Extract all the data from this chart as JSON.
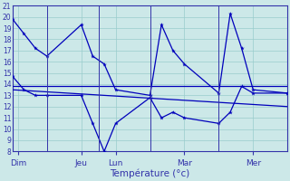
{
  "xlabel": "Température (°c)",
  "bg_color": "#cce8e8",
  "line_color": "#0000bb",
  "grid_color": "#99cccc",
  "axis_label_color": "#3333aa",
  "tick_label_color": "#3333aa",
  "ylim": [
    8,
    21
  ],
  "yticks": [
    8,
    9,
    10,
    11,
    12,
    13,
    14,
    15,
    16,
    17,
    18,
    19,
    20,
    21
  ],
  "xlim": [
    0,
    24
  ],
  "xtick_positions": [
    0.5,
    6,
    9,
    15,
    21
  ],
  "xtick_labels": [
    "Dim",
    "Jeu",
    "Lun",
    "Mar",
    "Mer"
  ],
  "day_sep_x": [
    3,
    7.5,
    12,
    18,
    24
  ],
  "series_max_x": [
    0,
    1,
    2,
    3,
    6,
    7,
    8,
    9,
    12,
    13,
    14,
    15,
    18,
    19,
    20,
    21,
    24
  ],
  "series_max_y": [
    19.8,
    18.5,
    17.2,
    16.5,
    19.3,
    16.5,
    15.8,
    13.5,
    13.0,
    19.3,
    17.0,
    15.8,
    13.2,
    20.3,
    17.2,
    13.5,
    13.2
  ],
  "series_min_x": [
    0,
    1,
    2,
    3,
    6,
    7,
    8,
    9,
    12,
    13,
    14,
    15,
    18,
    19,
    20,
    21,
    24
  ],
  "series_min_y": [
    14.7,
    13.5,
    13.0,
    13.0,
    13.0,
    10.5,
    8.0,
    10.5,
    12.8,
    11.0,
    11.5,
    11.0,
    10.5,
    11.5,
    13.8,
    13.2,
    13.2
  ],
  "series_trend1_x": [
    0,
    24
  ],
  "series_trend1_y": [
    13.8,
    13.8
  ],
  "series_trend2_x": [
    0,
    24
  ],
  "series_trend2_y": [
    13.5,
    12.0
  ]
}
